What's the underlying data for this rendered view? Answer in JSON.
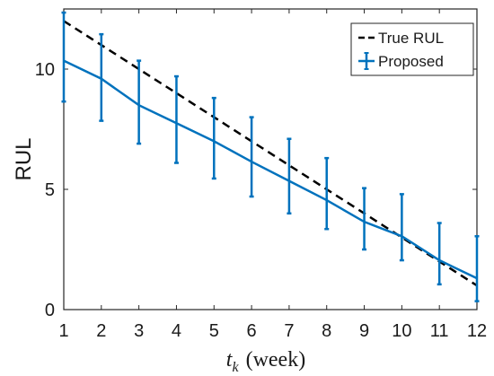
{
  "chart_data": {
    "type": "line",
    "title": "",
    "x": [
      1,
      2,
      3,
      4,
      5,
      6,
      7,
      8,
      9,
      10,
      11,
      12
    ],
    "xlim": [
      1,
      12
    ],
    "ylim": [
      0,
      12.5
    ],
    "xticks": [
      1,
      2,
      3,
      4,
      5,
      6,
      7,
      8,
      9,
      10,
      11,
      12
    ],
    "yticks": [
      0,
      5,
      10
    ],
    "ylabel": "RUL",
    "xlabel": {
      "var": "t",
      "sub": "k",
      "unit": "(week)"
    },
    "grid": false,
    "legend_position": "top-right",
    "series": [
      {
        "name": "True RUL",
        "style": "dashed",
        "color": "#000000",
        "values": [
          12,
          11,
          10,
          9,
          8,
          7,
          6,
          5,
          4,
          3,
          2,
          1
        ]
      },
      {
        "name": "Proposed",
        "style": "solid-errorbar",
        "color": "#0072BD",
        "values": [
          10.35,
          9.6,
          8.5,
          7.75,
          7.0,
          6.15,
          5.35,
          4.55,
          3.65,
          3.05,
          2.05,
          1.3
        ],
        "lower": [
          8.65,
          7.85,
          6.9,
          6.1,
          5.45,
          4.7,
          4.0,
          3.35,
          2.5,
          2.05,
          1.05,
          0.35
        ],
        "upper": [
          12.35,
          11.45,
          10.35,
          9.7,
          8.8,
          8.0,
          7.1,
          6.3,
          5.05,
          4.8,
          3.6,
          3.05
        ]
      }
    ]
  }
}
